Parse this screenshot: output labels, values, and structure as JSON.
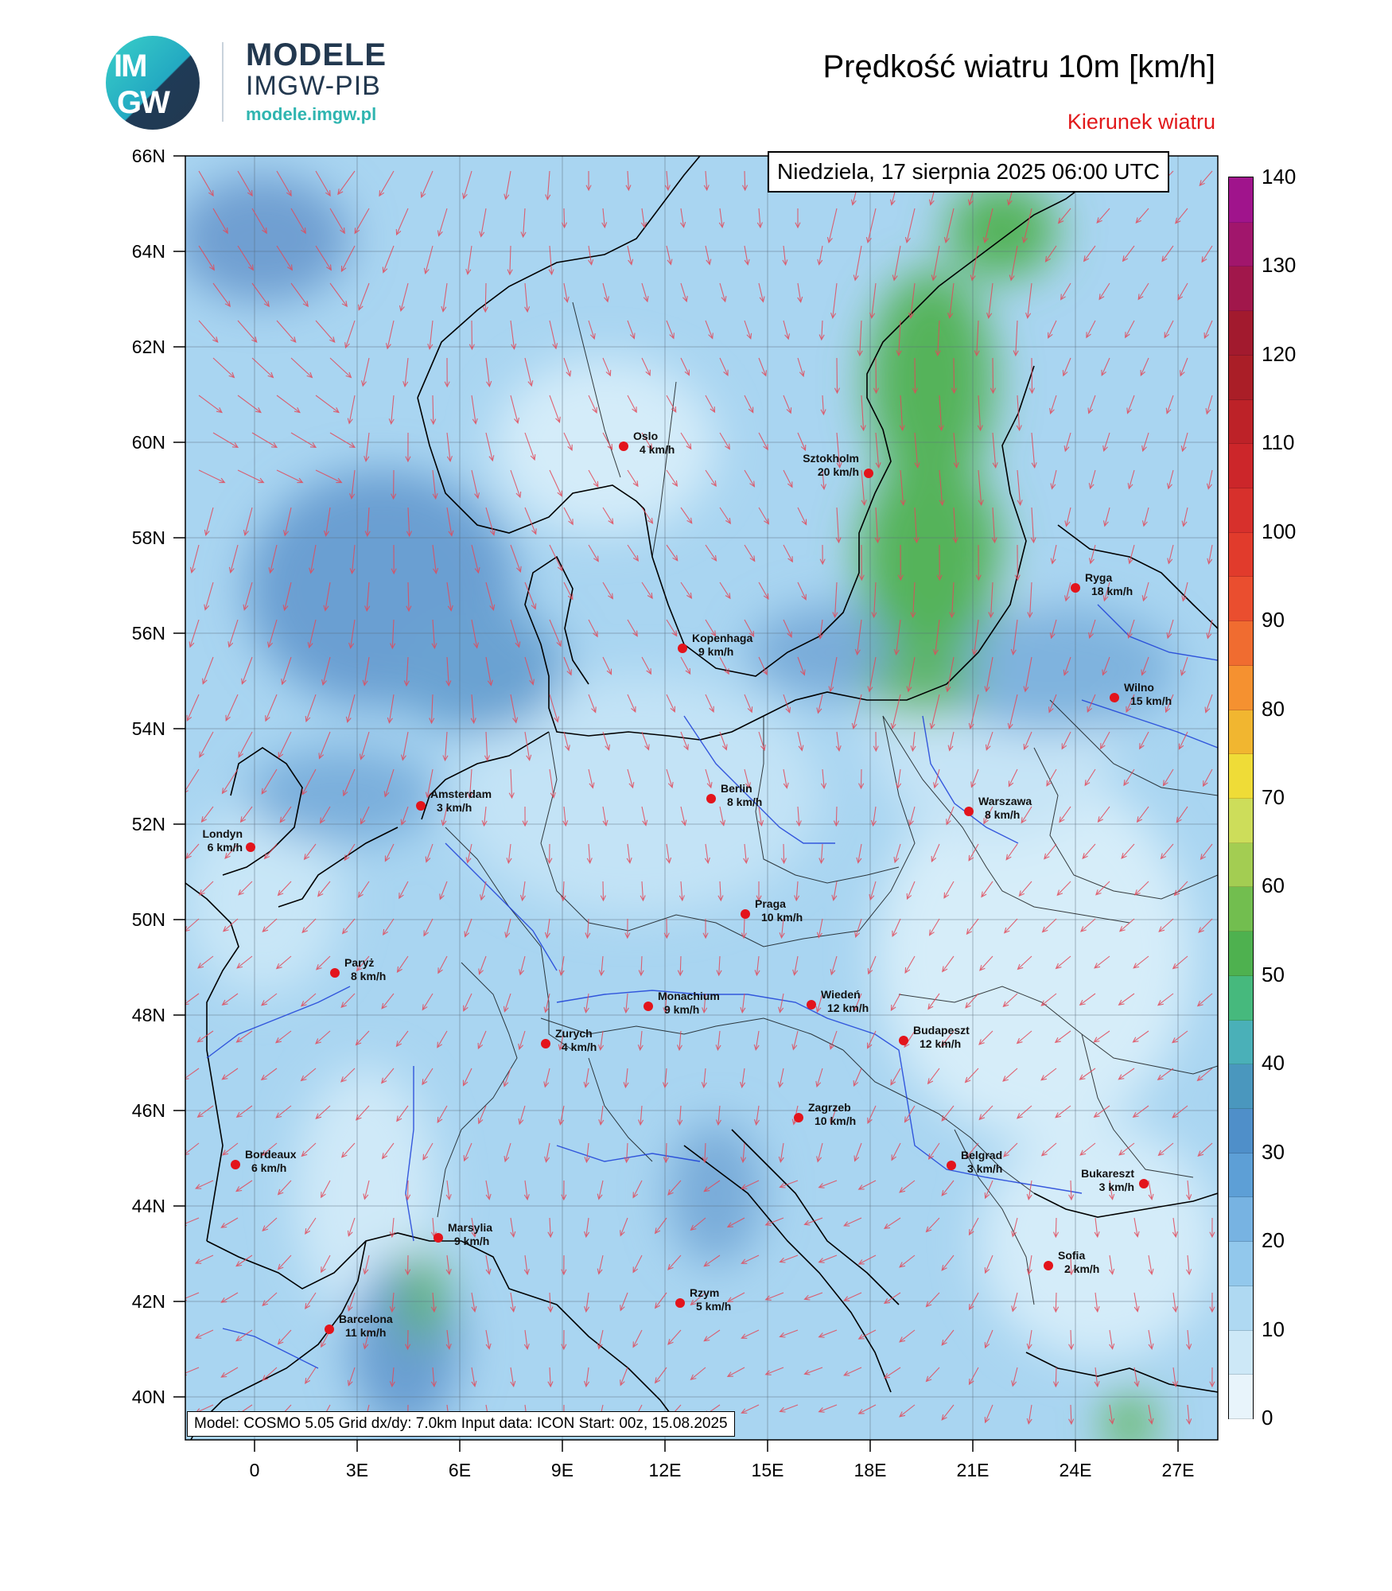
{
  "logo": {
    "main": "MODELE",
    "org": "IMGW-PIB",
    "url": "modele.imgw.pl",
    "badge_top": "IM",
    "badge_bottom": "GW"
  },
  "header": {
    "title": "Prędkość wiatru 10m [km/h]",
    "subtitle": "Kierunek wiatru"
  },
  "date_label": "Niedziela, 17 sierpnia 2025 06:00 UTC",
  "model_info": "Model: COSMO 5.05  Grid dx/dy: 7.0km  Input data: ICON  Start: 00z, 15.08.2025",
  "lat_labels": [
    "66N",
    "64N",
    "62N",
    "60N",
    "58N",
    "56N",
    "54N",
    "52N",
    "50N",
    "48N",
    "46N",
    "44N",
    "42N",
    "40N"
  ],
  "lon_labels": [
    "0",
    "3E",
    "6E",
    "9E",
    "12E",
    "15E",
    "18E",
    "21E",
    "24E",
    "27E"
  ],
  "colorbar": {
    "ticks": [
      "140",
      "130",
      "120",
      "110",
      "100",
      "90",
      "80",
      "70",
      "60",
      "50",
      "40",
      "30",
      "20",
      "10",
      "0"
    ],
    "colors": [
      "#e8f4fb",
      "#cde8f7",
      "#afd9f2",
      "#92c8ec",
      "#77b3e2",
      "#5d9fd6",
      "#4f8fc9",
      "#4a97be",
      "#4ab0b8",
      "#46b97d",
      "#4eb14f",
      "#72be4f",
      "#a3cd52",
      "#cddd5a",
      "#efdc37",
      "#f1b630",
      "#f59130",
      "#f06c30",
      "#ea4e2f",
      "#e13b2c",
      "#d7302c",
      "#cc262a",
      "#bd2228",
      "#aa1e27",
      "#a21a2e",
      "#a1174b",
      "#a1166c",
      "#a0148c"
    ]
  },
  "cities": [
    {
      "name": "Oslo",
      "speed": "4 km/h"
    },
    {
      "name": "Sztokholm",
      "speed": "20 km/h"
    },
    {
      "name": "Ryga",
      "speed": "18 km/h"
    },
    {
      "name": "Kopenhaga",
      "speed": "9 km/h"
    },
    {
      "name": "Wilno",
      "speed": "15 km/h"
    },
    {
      "name": "Amsterdam",
      "speed": "3 km/h"
    },
    {
      "name": "Berlin",
      "speed": "8 km/h"
    },
    {
      "name": "Warszawa",
      "speed": "8 km/h"
    },
    {
      "name": "Londyn",
      "speed": "6 km/h"
    },
    {
      "name": "Praga",
      "speed": "10 km/h"
    },
    {
      "name": "Paryż",
      "speed": "8 km/h"
    },
    {
      "name": "Monachium",
      "speed": "9 km/h"
    },
    {
      "name": "Wiedeń",
      "speed": "12 km/h"
    },
    {
      "name": "Zurych",
      "speed": "4 km/h"
    },
    {
      "name": "Budapeszt",
      "speed": "12 km/h"
    },
    {
      "name": "Zagrzeb",
      "speed": "10 km/h"
    },
    {
      "name": "Bordeaux",
      "speed": "6 km/h"
    },
    {
      "name": "Belgrad",
      "speed": "3 km/h"
    },
    {
      "name": "Bukareszt",
      "speed": "3 km/h"
    },
    {
      "name": "Marsylia",
      "speed": "9 km/h"
    },
    {
      "name": "Sofia",
      "speed": "2 km/h"
    },
    {
      "name": "Rzym",
      "speed": "5 km/h"
    },
    {
      "name": "Barcelona",
      "speed": "11 km/h"
    }
  ]
}
